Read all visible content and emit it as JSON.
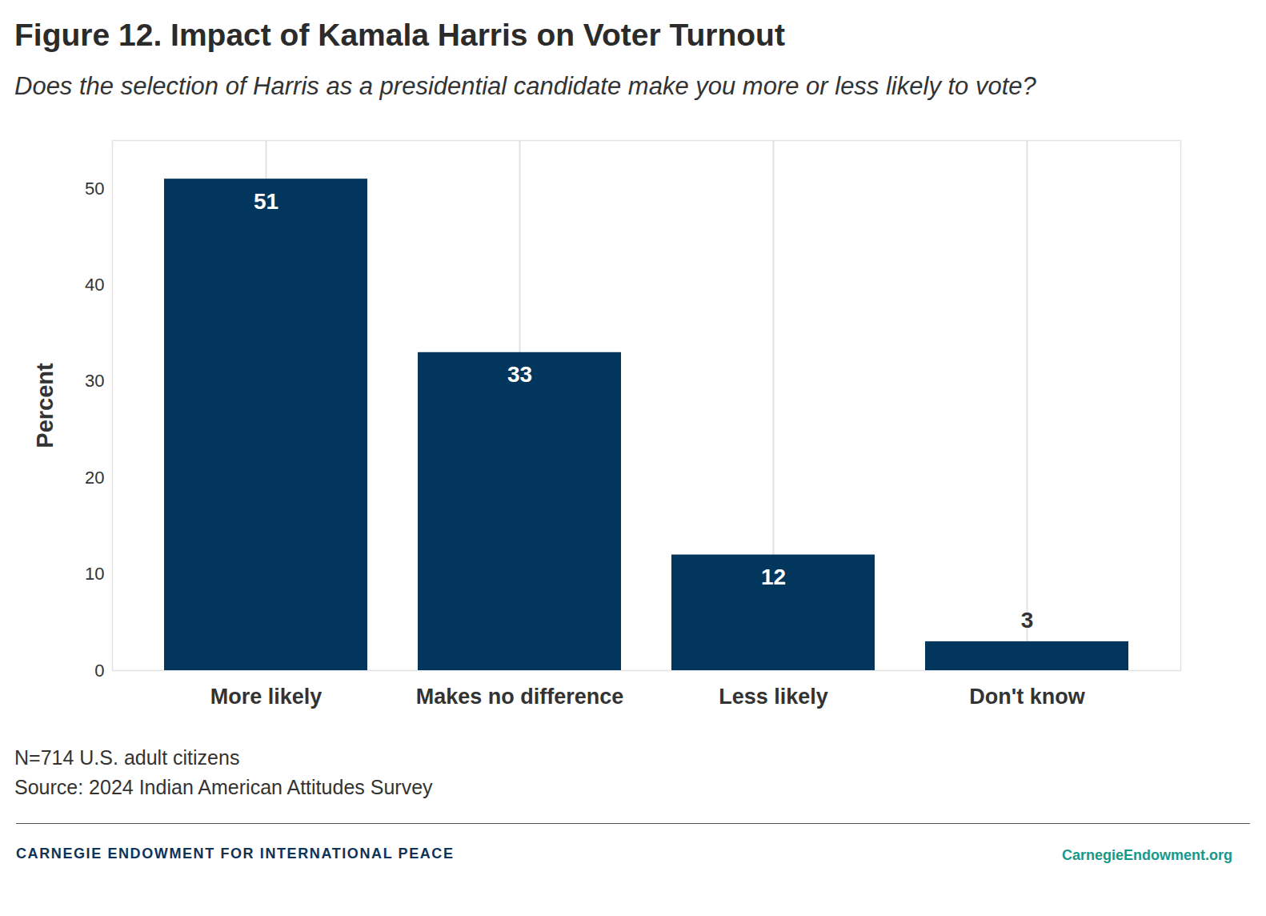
{
  "chart_data": {
    "type": "bar",
    "title": "Figure 12. Impact of Kamala Harris on Voter Turnout",
    "subtitle": "Does the selection of Harris as a presidential candidate make you more or less likely to vote?",
    "categories": [
      "More likely",
      "Makes no difference",
      "Less likely",
      "Don't know"
    ],
    "values": [
      51,
      33,
      12,
      3
    ],
    "color": "#03365c",
    "ylabel": "Percent",
    "ylim": [
      0,
      55
    ],
    "yticks": [
      0,
      10,
      20,
      30,
      40,
      50
    ],
    "grid": true,
    "data_labels": true,
    "notes": [
      "N=714 U.S. adult citizens",
      "Source: 2024 Indian American Attitudes Survey"
    ],
    "footer": [
      "CARNEGIE ENDOWMENT FOR INTERNATIONAL PEACE",
      "CarnegieEndowment.org"
    ]
  }
}
